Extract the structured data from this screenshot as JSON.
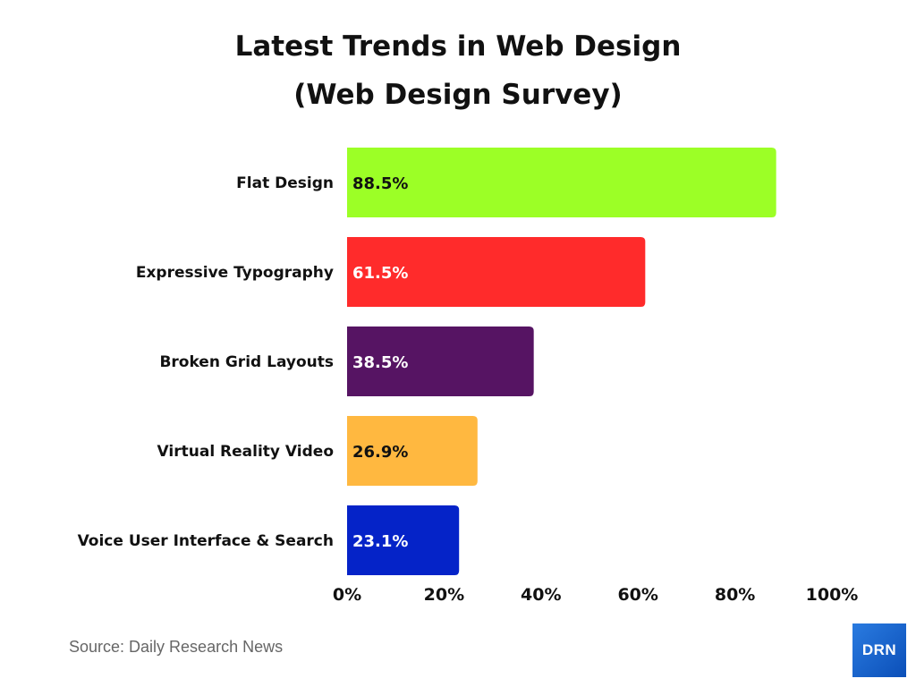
{
  "chart_data": {
    "type": "bar",
    "orientation": "horizontal",
    "title": "Latest Trends in Web Design",
    "subtitle": "(Web Design Survey)",
    "categories": [
      "Flat Design",
      "Expressive Typography",
      "Broken Grid Layouts",
      "Virtual Reality Video",
      "Voice User Interface & Search"
    ],
    "values": [
      88.5,
      61.5,
      38.5,
      26.9,
      23.1
    ],
    "data_labels": [
      "88.5%",
      "61.5%",
      "38.5%",
      "26.9%",
      "23.1%"
    ],
    "colors": [
      "#9cff26",
      "#ff2b2b",
      "#561463",
      "#ffb840",
      "#0523c8"
    ],
    "label_colors": [
      "#111111",
      "#ffffff",
      "#ffffff",
      "#111111",
      "#ffffff"
    ],
    "xlim": [
      0,
      100
    ],
    "xticks": [
      0,
      20,
      40,
      60,
      80,
      100
    ],
    "xtick_labels": [
      "0%",
      "20%",
      "40%",
      "60%",
      "80%",
      "100%"
    ],
    "grid": false,
    "legend": "none"
  },
  "source": "Source: Daily Research News",
  "logo": "DRN"
}
